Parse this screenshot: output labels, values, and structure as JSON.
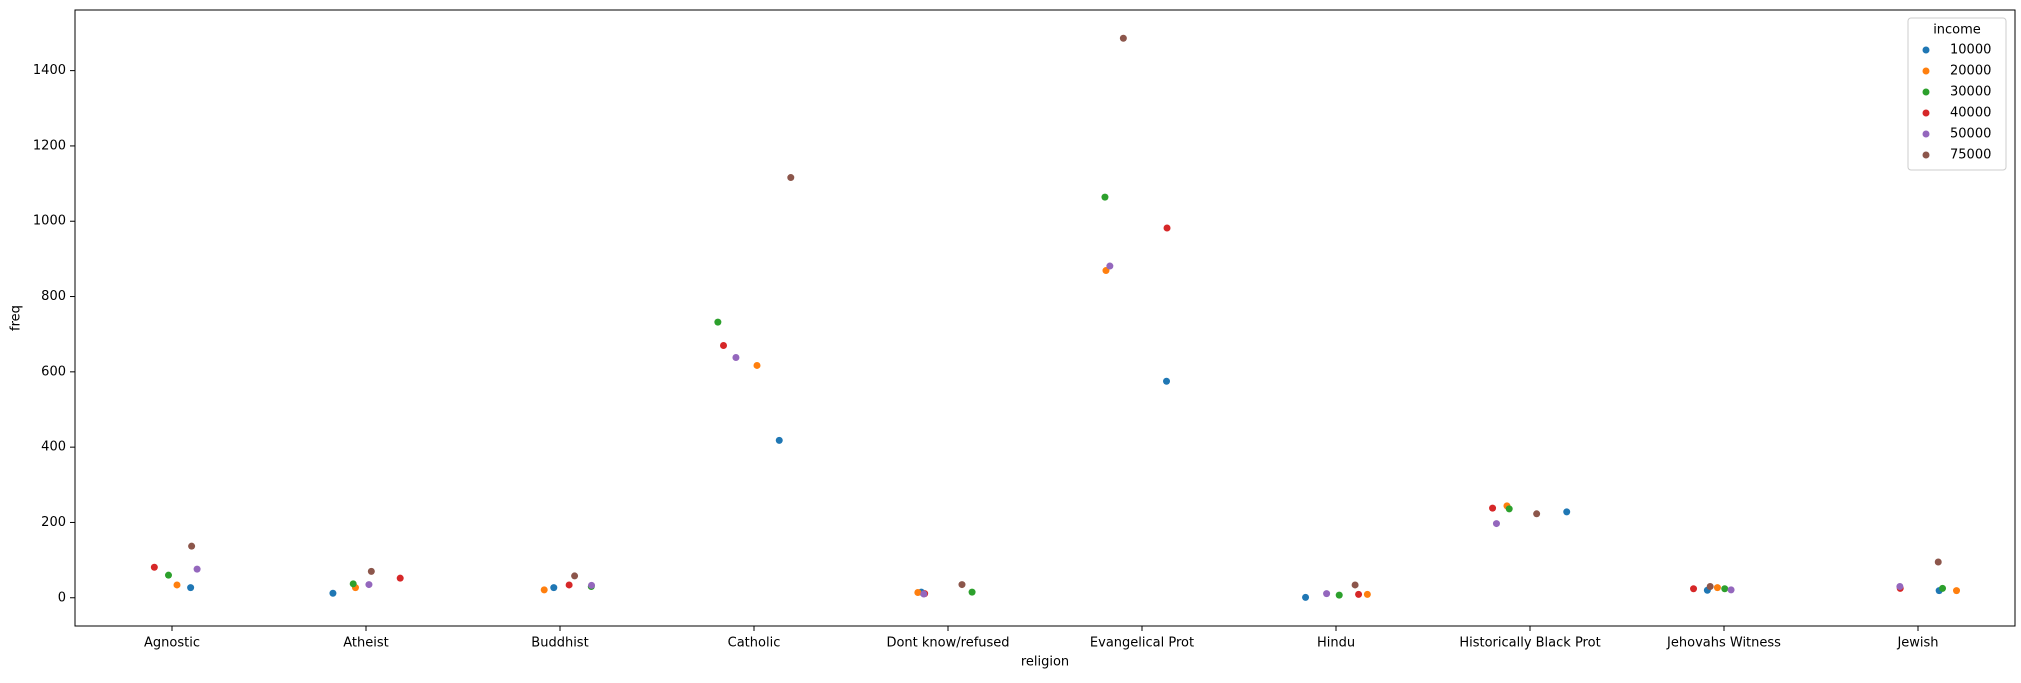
{
  "chart_data": {
    "type": "scatter",
    "x_label": "religion",
    "y_label": "freq",
    "categories": [
      "Agnostic",
      "Atheist",
      "Buddhist",
      "Catholic",
      "Dont know/refused",
      "Evangelical Prot",
      "Hindu",
      "Historically Black Prot",
      "Jehovahs Witness",
      "Jewish"
    ],
    "legend_title": "income",
    "legend_position": "upper right",
    "series": [
      {
        "name": "10000",
        "color": "#1f77b4",
        "values": [
          27,
          12,
          27,
          418,
          15,
          575,
          1,
          228,
          20,
          19
        ]
      },
      {
        "name": "20000",
        "color": "#ff7f0e",
        "values": [
          34,
          27,
          21,
          617,
          14,
          869,
          9,
          244,
          27,
          19
        ]
      },
      {
        "name": "30000",
        "color": "#2ca02c",
        "values": [
          60,
          37,
          30,
          732,
          15,
          1064,
          7,
          236,
          24,
          25
        ]
      },
      {
        "name": "40000",
        "color": "#d62728",
        "values": [
          81,
          52,
          34,
          670,
          11,
          982,
          9,
          238,
          24,
          25
        ]
      },
      {
        "name": "50000",
        "color": "#9467bd",
        "values": [
          76,
          35,
          33,
          638,
          10,
          881,
          11,
          197,
          21,
          30
        ]
      },
      {
        "name": "75000",
        "color": "#8c564b",
        "values": [
          137,
          70,
          58,
          1116,
          35,
          1486,
          34,
          223,
          30,
          95
        ]
      }
    ],
    "ylim": [
      -75,
      1561
    ],
    "yticks": [
      0,
      200,
      400,
      600,
      800,
      1000,
      1200,
      1400
    ],
    "grid": false
  }
}
